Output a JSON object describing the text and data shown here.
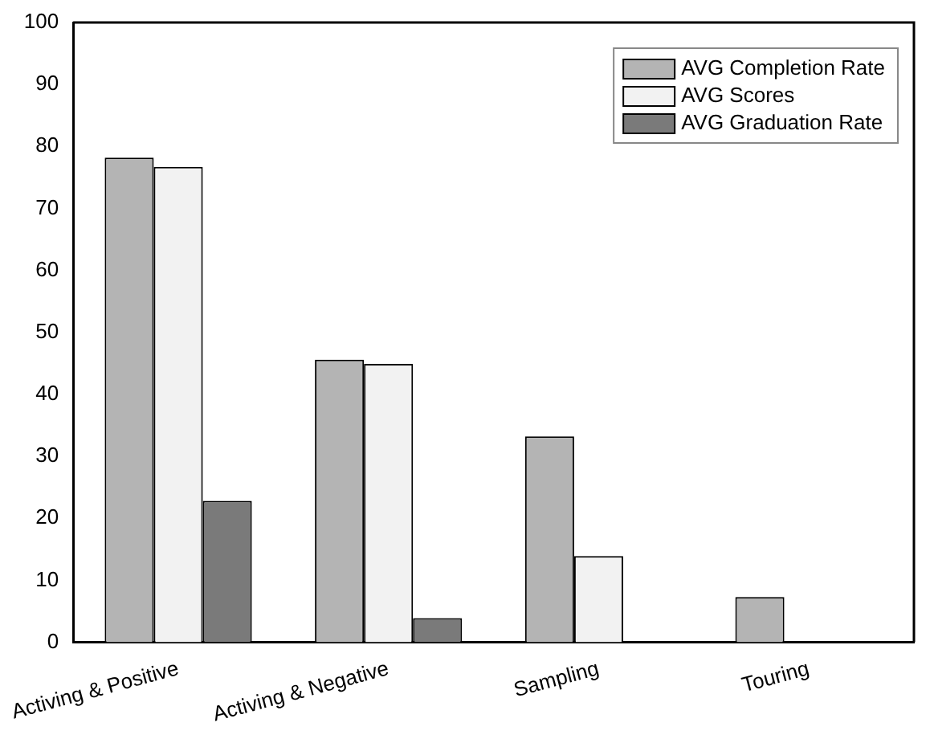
{
  "chart_data": {
    "type": "bar",
    "categories": [
      "Activing & Positive",
      "Activing & Negative",
      "Sampling",
      "Touring"
    ],
    "series": [
      {
        "name": "AVG Completion Rate",
        "color": "#b4b4b4",
        "values": [
          78.2,
          45.6,
          33.2,
          7.3
        ]
      },
      {
        "name": "AVG Scores",
        "color": "#f2f2f2",
        "values": [
          76.7,
          44.9,
          13.9,
          null
        ]
      },
      {
        "name": "AVG Graduation Rate",
        "color": "#7a7a7a",
        "values": [
          22.8,
          3.9,
          null,
          null
        ]
      }
    ],
    "ylim": [
      0,
      100
    ],
    "yticks": [
      0,
      10,
      20,
      30,
      40,
      50,
      60,
      70,
      80,
      90,
      100
    ],
    "grid": false,
    "legend": "top right"
  }
}
